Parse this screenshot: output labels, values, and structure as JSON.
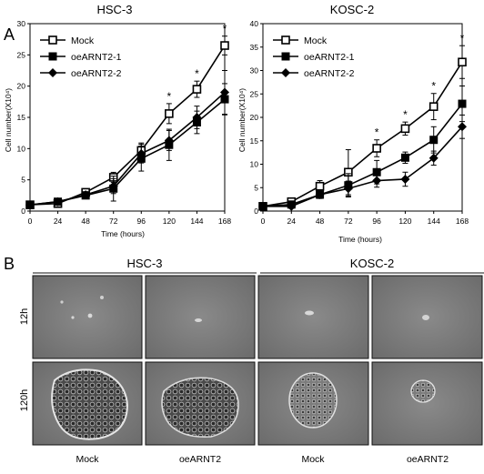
{
  "panels": {
    "a_label": "A",
    "b_label": "B"
  },
  "chart_data": [
    {
      "type": "line",
      "title": "HSC-3",
      "xlabel": "Time (hours)",
      "ylabel": "Cell number(X10⁴)",
      "x": [
        0,
        24,
        48,
        72,
        96,
        120,
        144,
        168
      ],
      "xlim": [
        0,
        168
      ],
      "ylim": [
        0,
        30
      ],
      "yticks": [
        0,
        5,
        10,
        15,
        20,
        25,
        30
      ],
      "grid": false,
      "legend_position": "top-left",
      "series": [
        {
          "name": "Mock",
          "marker": "open-square",
          "values": [
            1.0,
            1.2,
            3.0,
            5.4,
            9.7,
            15.6,
            19.5,
            26.5
          ],
          "errors": [
            0.3,
            0.4,
            0.5,
            0.8,
            1.2,
            1.6,
            1.3,
            1.5
          ]
        },
        {
          "name": "oeARNT2-1",
          "marker": "filled-square",
          "values": [
            1.0,
            1.5,
            2.5,
            3.6,
            8.4,
            10.6,
            14.2,
            17.9
          ],
          "errors": [
            0.3,
            0.4,
            0.5,
            2.0,
            2.0,
            2.5,
            1.8,
            2.5
          ]
        },
        {
          "name": "oeARNT2-2",
          "marker": "filled-diamond",
          "values": [
            1.0,
            1.5,
            2.6,
            4.0,
            9.2,
            11.3,
            15.0,
            19.0
          ],
          "errors": [
            0.3,
            0.4,
            0.5,
            1.2,
            1.5,
            1.6,
            1.8,
            3.5
          ]
        }
      ],
      "significance": [
        {
          "x": 120,
          "label": "*"
        },
        {
          "x": 144,
          "label": "*"
        },
        {
          "x": 168,
          "label": "*"
        }
      ]
    },
    {
      "type": "line",
      "title": "KOSC-2",
      "xlabel": "Time (hours)",
      "ylabel": "Cell number(X10⁴)",
      "x": [
        0,
        24,
        48,
        72,
        96,
        120,
        144,
        168
      ],
      "xlim": [
        0,
        168
      ],
      "ylim": [
        0,
        40
      ],
      "yticks": [
        0,
        5,
        10,
        15,
        20,
        25,
        30,
        35,
        40
      ],
      "grid": false,
      "legend_position": "top-left",
      "series": [
        {
          "name": "Mock",
          "marker": "open-square",
          "values": [
            1.0,
            2.0,
            5.3,
            8.3,
            13.4,
            17.6,
            22.3,
            31.8
          ],
          "errors": [
            0.4,
            0.6,
            1.2,
            4.8,
            1.8,
            1.4,
            2.8,
            3.5
          ]
        },
        {
          "name": "oeARNT2-1",
          "marker": "filled-square",
          "values": [
            1.0,
            1.4,
            3.5,
            5.5,
            8.3,
            11.4,
            15.2,
            22.9
          ],
          "errors": [
            0.3,
            0.5,
            0.8,
            2.5,
            2.5,
            1.2,
            2.8,
            3.8
          ]
        },
        {
          "name": "oeARNT2-2",
          "marker": "filled-diamond",
          "values": [
            1.0,
            1.0,
            3.5,
            4.8,
            6.5,
            6.8,
            11.3,
            18.0
          ],
          "errors": [
            0.3,
            0.4,
            0.8,
            1.6,
            1.4,
            1.5,
            1.5,
            2.5
          ]
        }
      ],
      "significance": [
        {
          "x": 96,
          "label": "*"
        },
        {
          "x": 120,
          "label": "*"
        },
        {
          "x": 144,
          "label": "*"
        },
        {
          "x": 168,
          "label": "*"
        }
      ]
    }
  ],
  "micrographs": {
    "groups": [
      "HSC-3",
      "KOSC-2"
    ],
    "rows": [
      "12h",
      "120h"
    ],
    "columns": [
      "Mock",
      "oeARNT2",
      "Mock",
      "oeARNT2"
    ]
  }
}
